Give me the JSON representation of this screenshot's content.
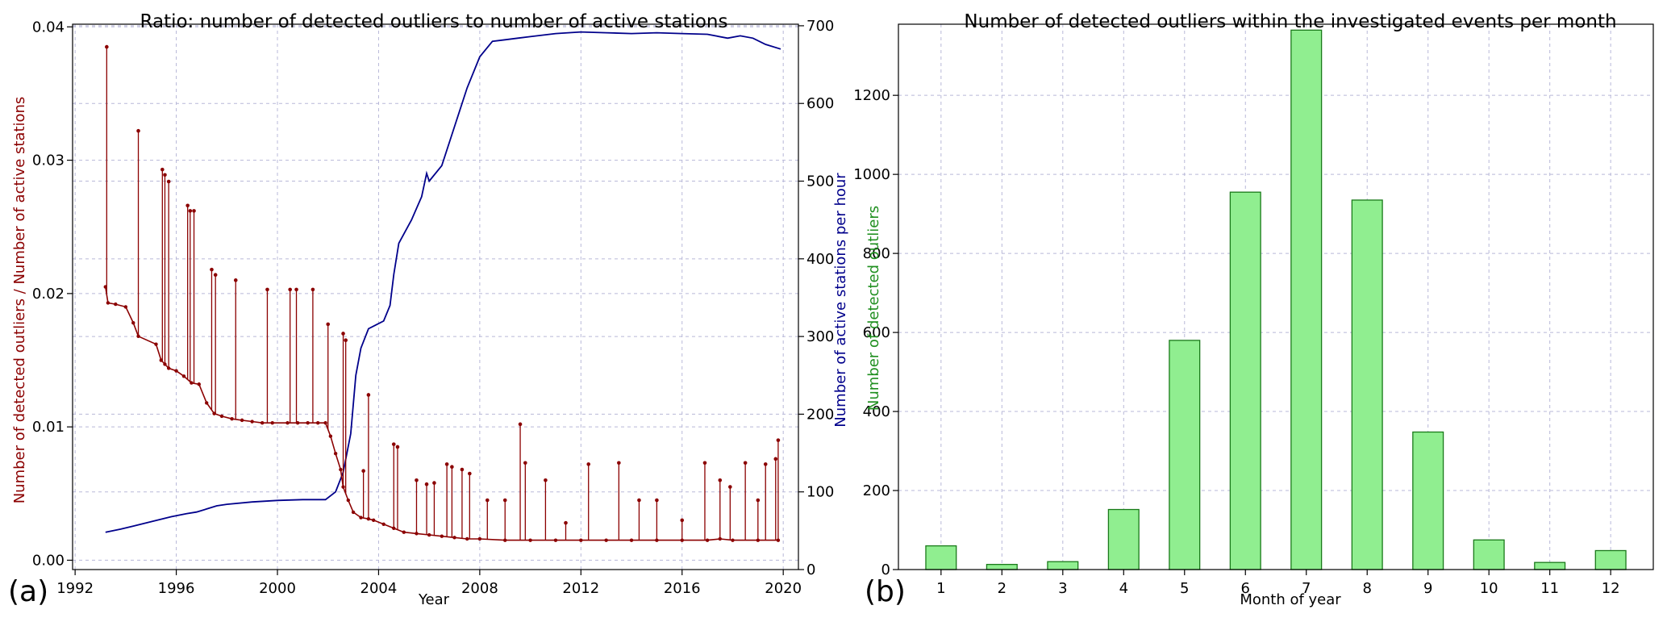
{
  "panels": {
    "a": {
      "letter": "(a)"
    },
    "b": {
      "letter": "(b)"
    }
  },
  "colors": {
    "ratio_line": "#8b0000",
    "stations_line": "#00008b",
    "bar_fill": "#90ee90",
    "bar_edge": "#1a7a1a",
    "right_ylabel_b": "#1f8f1f",
    "grid": "#b8b8d8"
  },
  "chart_data": [
    {
      "type": "line",
      "title": "Ratio: number of detected outliers to number of active stations",
      "xlabel": "Year",
      "ylabel": "Number of detected outliers / Number of active stations",
      "y2label": "Number of active stations per hour",
      "xlim": [
        1991.9,
        2020.6
      ],
      "ylim": [
        -0.0007,
        0.0402
      ],
      "y2lim": [
        0,
        702
      ],
      "x_ticks": [
        1992,
        1996,
        2000,
        2004,
        2008,
        2012,
        2016,
        2020
      ],
      "y_ticks": [
        0.0,
        0.01,
        0.02,
        0.03,
        0.04
      ],
      "y_tick_labels": [
        "0.00",
        "0.01",
        "0.02",
        "0.03",
        "0.04"
      ],
      "y2_ticks": [
        0,
        100,
        200,
        300,
        400,
        500,
        600,
        700
      ],
      "grid": true,
      "series": [
        {
          "name": "",
          "axis": "left",
          "marker": "dot",
          "x": [
            1993.2,
            1993.3,
            1993.6,
            1994.0,
            1994.3,
            1994.5,
            1995.2,
            1995.4,
            1995.55,
            1995.7,
            1996.0,
            1996.3,
            1996.6,
            1996.9,
            1997.2,
            1997.5,
            1997.8,
            1998.2,
            1998.6,
            1999.0,
            1999.4,
            1999.8,
            2000.4,
            2000.8,
            2001.2,
            2001.6,
            2001.9,
            2002.1,
            2002.3,
            2002.5,
            2002.6,
            2002.8,
            2003.0,
            2003.3,
            2003.6,
            2003.8,
            2004.2,
            2004.6,
            2005.0,
            2005.5,
            2006.0,
            2006.5,
            2007.0,
            2007.5,
            2008.0,
            2009.0,
            2010.0,
            2011.0,
            2012.0,
            2013.0,
            2014.0,
            2015.0,
            2016.0,
            2017.0,
            2017.5,
            2018.0,
            2019.0,
            2019.8
          ],
          "y": [
            0.0205,
            0.0193,
            0.0192,
            0.019,
            0.0178,
            0.0168,
            0.0162,
            0.015,
            0.0147,
            0.0144,
            0.0142,
            0.0138,
            0.0133,
            0.0132,
            0.0118,
            0.011,
            0.0108,
            0.0106,
            0.0105,
            0.0104,
            0.0103,
            0.0103,
            0.0103,
            0.0103,
            0.0103,
            0.0103,
            0.0103,
            0.0093,
            0.008,
            0.0068,
            0.0055,
            0.0045,
            0.0036,
            0.0032,
            0.0031,
            0.003,
            0.0027,
            0.0024,
            0.0021,
            0.002,
            0.0019,
            0.0018,
            0.0017,
            0.0016,
            0.0016,
            0.0015,
            0.0015,
            0.0015,
            0.0015,
            0.0015,
            0.0015,
            0.0015,
            0.0015,
            0.0015,
            0.0016,
            0.0015,
            0.0015,
            0.0015
          ],
          "spikes": [
            {
              "x": 1993.25,
              "y": 0.0385
            },
            {
              "x": 1994.5,
              "y": 0.0322
            },
            {
              "x": 1995.45,
              "y": 0.0293
            },
            {
              "x": 1995.55,
              "y": 0.0289
            },
            {
              "x": 1995.7,
              "y": 0.0284
            },
            {
              "x": 1996.45,
              "y": 0.0266
            },
            {
              "x": 1996.55,
              "y": 0.0262
            },
            {
              "x": 1996.7,
              "y": 0.0262
            },
            {
              "x": 1997.4,
              "y": 0.0218
            },
            {
              "x": 1997.55,
              "y": 0.0214
            },
            {
              "x": 1998.35,
              "y": 0.021
            },
            {
              "x": 1999.6,
              "y": 0.0203
            },
            {
              "x": 2000.5,
              "y": 0.0203
            },
            {
              "x": 2000.75,
              "y": 0.0203
            },
            {
              "x": 2001.4,
              "y": 0.0203
            },
            {
              "x": 2002.0,
              "y": 0.0177
            },
            {
              "x": 2002.6,
              "y": 0.017
            },
            {
              "x": 2002.7,
              "y": 0.0165
            },
            {
              "x": 2003.4,
              "y": 0.0067
            },
            {
              "x": 2003.6,
              "y": 0.0124
            },
            {
              "x": 2004.6,
              "y": 0.0087
            },
            {
              "x": 2004.75,
              "y": 0.0085
            },
            {
              "x": 2005.5,
              "y": 0.006
            },
            {
              "x": 2005.9,
              "y": 0.0057
            },
            {
              "x": 2006.2,
              "y": 0.0058
            },
            {
              "x": 2006.7,
              "y": 0.0072
            },
            {
              "x": 2006.9,
              "y": 0.007
            },
            {
              "x": 2007.3,
              "y": 0.0068
            },
            {
              "x": 2007.6,
              "y": 0.0065
            },
            {
              "x": 2008.3,
              "y": 0.0045
            },
            {
              "x": 2009.0,
              "y": 0.0045
            },
            {
              "x": 2009.6,
              "y": 0.0102
            },
            {
              "x": 2009.8,
              "y": 0.0073
            },
            {
              "x": 2010.6,
              "y": 0.006
            },
            {
              "x": 2011.4,
              "y": 0.0028
            },
            {
              "x": 2012.3,
              "y": 0.0072
            },
            {
              "x": 2013.5,
              "y": 0.0073
            },
            {
              "x": 2014.3,
              "y": 0.0045
            },
            {
              "x": 2015.0,
              "y": 0.0045
            },
            {
              "x": 2016.0,
              "y": 0.003
            },
            {
              "x": 2016.9,
              "y": 0.0073
            },
            {
              "x": 2017.5,
              "y": 0.006
            },
            {
              "x": 2017.9,
              "y": 0.0055
            },
            {
              "x": 2018.5,
              "y": 0.0073
            },
            {
              "x": 2019.0,
              "y": 0.0045
            },
            {
              "x": 2019.3,
              "y": 0.0072
            },
            {
              "x": 2019.7,
              "y": 0.0076
            },
            {
              "x": 2019.8,
              "y": 0.009
            }
          ]
        },
        {
          "name": "",
          "axis": "right",
          "marker": "none",
          "x": [
            1993.2,
            1993.8,
            1994.3,
            1994.8,
            1995.3,
            1995.8,
            1996.4,
            1996.8,
            1997.2,
            1997.6,
            1998.0,
            1999.0,
            2000.0,
            2001.0,
            2001.9,
            2002.3,
            2002.6,
            2002.9,
            2003.1,
            2003.3,
            2003.6,
            2003.9,
            2004.2,
            2004.45,
            2004.6,
            2004.8,
            2005.3,
            2005.7,
            2005.9,
            2006.0,
            2006.5,
            2007.0,
            2007.5,
            2008.0,
            2008.5,
            2009.0,
            2009.5,
            2010.0,
            2011.0,
            2012.0,
            2013.0,
            2014.0,
            2015.0,
            2016.0,
            2017.0,
            2017.8,
            2018.3,
            2018.8,
            2019.3,
            2019.9
          ],
          "y": [
            48,
            52,
            56,
            60,
            64,
            68,
            72,
            74,
            78,
            82,
            84,
            87,
            89,
            90,
            90,
            100,
            125,
            175,
            250,
            285,
            310,
            315,
            320,
            340,
            380,
            420,
            450,
            480,
            510,
            500,
            520,
            570,
            620,
            660,
            680,
            682,
            684,
            686,
            690,
            692,
            691,
            690,
            691,
            690,
            689,
            684,
            687,
            684,
            676,
            670
          ]
        }
      ]
    },
    {
      "type": "bar",
      "title": "Number of detected outliers within the investigated events per month",
      "xlabel": "Month of year",
      "ylabel": "Number of detected outliers",
      "categories": [
        "1",
        "2",
        "3",
        "4",
        "5",
        "6",
        "7",
        "8",
        "9",
        "10",
        "11",
        "12"
      ],
      "values": [
        60,
        13,
        20,
        152,
        580,
        955,
        1365,
        935,
        348,
        75,
        18,
        48
      ],
      "ylim": [
        0,
        1380
      ],
      "y_ticks": [
        0,
        200,
        400,
        600,
        800,
        1000,
        1200
      ],
      "grid": true
    }
  ]
}
